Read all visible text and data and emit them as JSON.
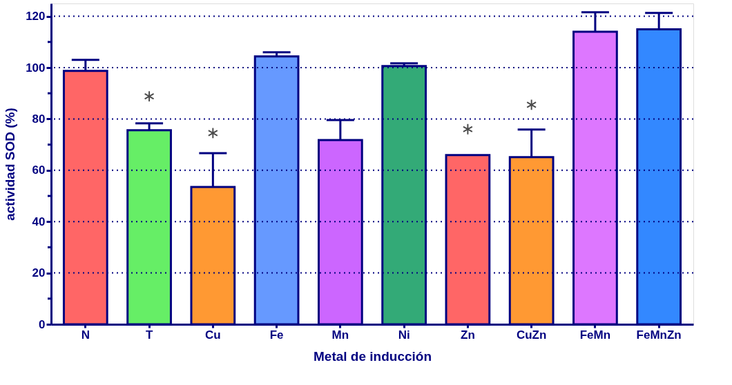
{
  "chart_data": {
    "type": "bar",
    "xlabel": "Metal de inducción",
    "ylabel": "actividad SOD (%)",
    "categories": [
      "N",
      "T",
      "Cu",
      "Fe",
      "Mn",
      "Ni",
      "Zn",
      "CuZn",
      "FeMn",
      "FeMnZn"
    ],
    "values": [
      98.7,
      75.6,
      53.5,
      104.4,
      71.8,
      100.6,
      65.9,
      65.1,
      114,
      114.9
    ],
    "errors": [
      [
        98.7,
        103
      ],
      [
        75.6,
        78.3
      ],
      [
        53.5,
        66.7
      ],
      [
        104.4,
        106
      ],
      [
        71.8,
        79.6
      ],
      [
        100.6,
        101.7
      ],
      null,
      [
        65.1,
        75.9
      ],
      [
        114,
        121.6
      ],
      [
        114.9,
        121.3
      ]
    ],
    "colors": [
      "#ff6666",
      "#66ee66",
      "#ff9933",
      "#6699ff",
      "#cc66ff",
      "#33aa77",
      "#ff6666",
      "#ff9933",
      "#dd77ff",
      "#3388ff"
    ],
    "ylim": [
      0,
      125
    ],
    "yticks": [
      0,
      {
        "value": 10,
        "label": null
      },
      20,
      {
        "value": 30,
        "label": null
      },
      40,
      {
        "value": 50,
        "label": null
      },
      60,
      {
        "value": 70,
        "label": null
      },
      80,
      {
        "value": 90,
        "label": null
      },
      100,
      {
        "value": 110,
        "label": null
      },
      120
    ],
    "grid": "y",
    "series": [
      {
        "type": "scatter",
        "x": [
          "T",
          "Cu",
          "Zn",
          "CuZn"
        ],
        "values": [
          88.8,
          74.5,
          76,
          85.5
        ],
        "color": "#000000",
        "marker": "cross"
      }
    ]
  }
}
